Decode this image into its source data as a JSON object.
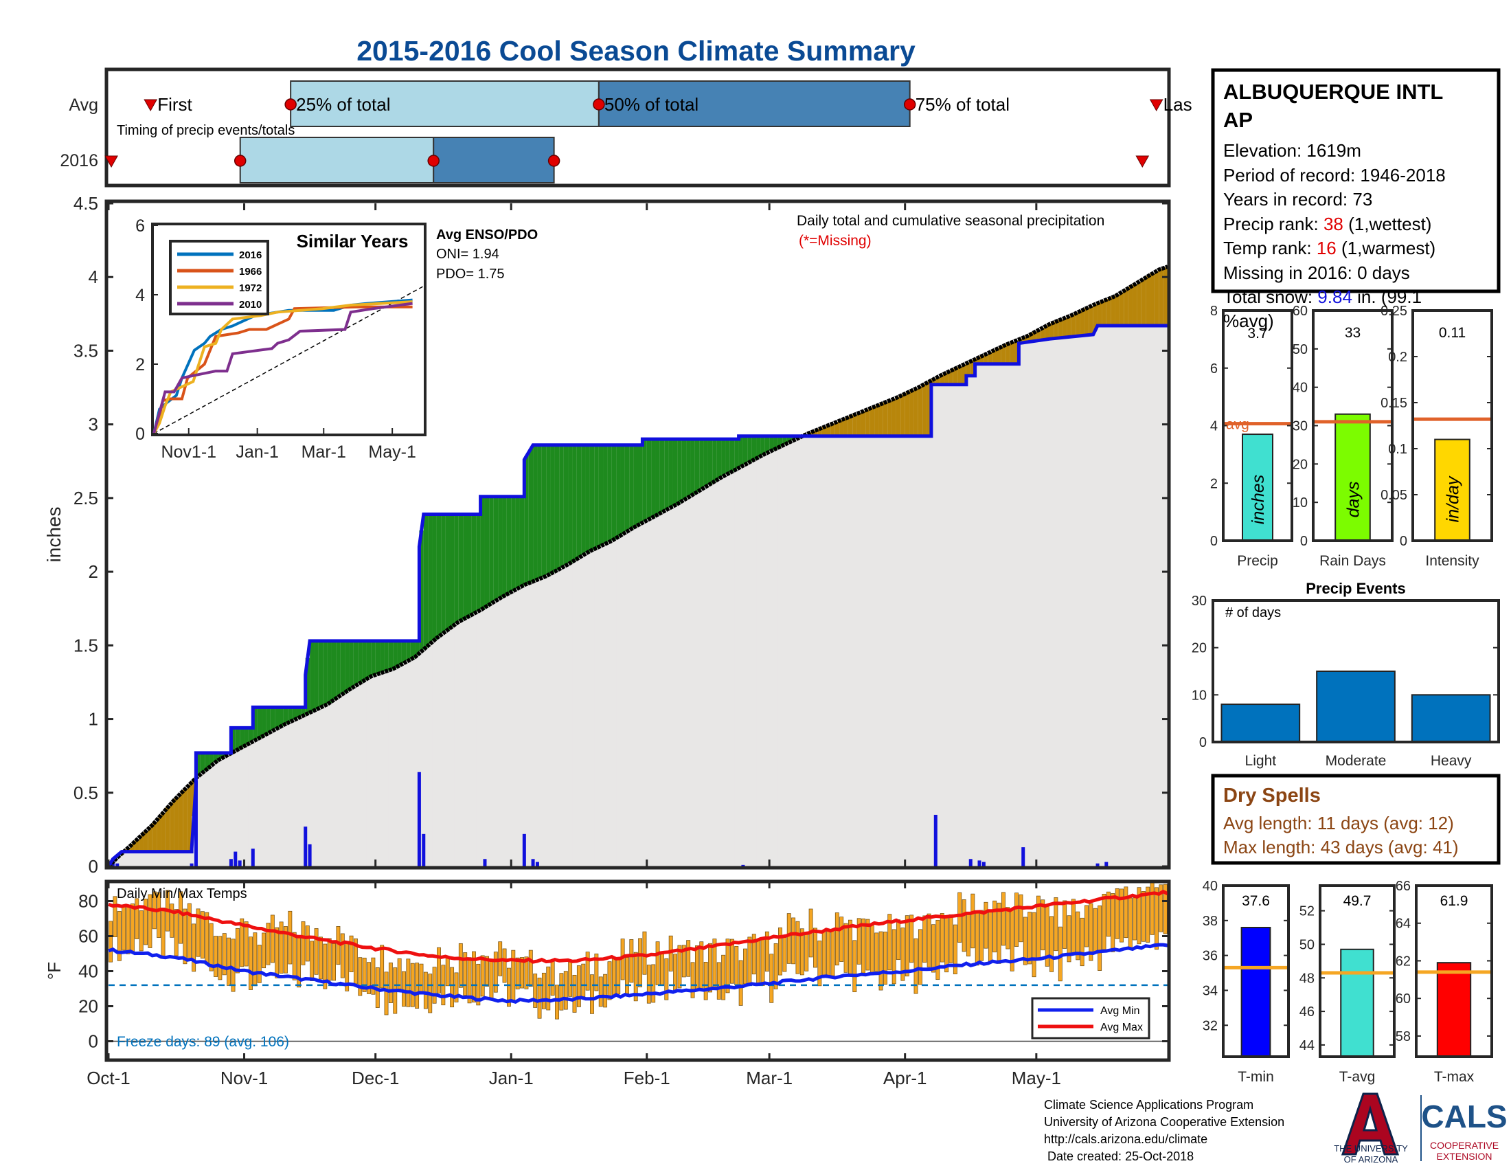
{
  "title": "2015-2016 Cool Season Climate Summary",
  "colors": {
    "title_blue": "#0a4a94",
    "pctl_light": "#add8e6",
    "pctl_dark": "#4682b4",
    "marker_red": "#e00000",
    "cum_blue": "#1010dd",
    "above_green": "#1e8a1e",
    "below_brown": "#b8860b",
    "area_gray": "#e8e7e6",
    "temp_bar": "#f5a623",
    "avg_min_blue": "#1020ee",
    "avg_max_red": "#ee1010",
    "freeze_blue": "#0072bd",
    "c2016": "#0072bd",
    "c1966": "#d95319",
    "c1972": "#edb120",
    "c2010": "#7e2f8e",
    "precip_bar": "#40e0d0",
    "raindays_bar": "#7cfc00",
    "intensity_bar": "#ffd700",
    "avg_line": "#e0622a",
    "events_bar": "#0072bd",
    "dry_brown": "#8b4513",
    "tmin_bar": "#0000ff",
    "tavg_bar": "#40e0d0",
    "tmax_bar": "#ff0000",
    "temp_avg_line": "#f5a623",
    "ua_red": "#ab0520",
    "ua_navy": "#0c234b",
    "cals_blue": "#1e5288"
  },
  "timing": {
    "row_labels": [
      "Avg",
      "2016"
    ],
    "avg_labels": {
      "first": "First",
      "p25": "25% of total",
      "p50": "50% of total",
      "p75": "75% of total",
      "last": "Las"
    },
    "subtitle": "Timing of precip events/totals",
    "avg_days": {
      "first": 15,
      "p25": 65,
      "p50": 175,
      "p75": 286,
      "last": 374
    },
    "y2016_days": {
      "first": 1,
      "p25": 47,
      "p50": 116,
      "p75": 159,
      "last": 369
    }
  },
  "station": {
    "name_line1": "ALBUQUERQUE INTL",
    "name_line2": "AP",
    "elevation": "Elevation: 1619m",
    "period": "Period of record: 1946-2018",
    "years": "Years in record: 73",
    "precip_rank_label": "Precip rank: ",
    "precip_rank_value": "38",
    "precip_rank_suffix": " (1,wettest)",
    "temp_rank_label": "Temp rank: ",
    "temp_rank_value": "16",
    "temp_rank_suffix": " (1,warmest)",
    "missing": "Missing in 2016: 0 days",
    "snow_label": "Total snow: ",
    "snow_value": "9.84",
    "snow_suffix": " in. (99.1",
    "snow_suffix2": "%avg)"
  },
  "main_chart": {
    "ylabel": "inches",
    "yticks": [
      "0",
      "0.5",
      "1",
      "1.5",
      "2",
      "2.5",
      "3",
      "3.5",
      "4",
      "4.5"
    ],
    "ylim": [
      0,
      4.5
    ],
    "xticks": [
      {
        "label": "Oct-1",
        "day": 0
      },
      {
        "label": "Nov-1",
        "day": 31
      },
      {
        "label": "Dec-1",
        "day": 61
      },
      {
        "label": "Jan-1",
        "day": 92
      },
      {
        "label": "Feb-1",
        "day": 123
      },
      {
        "label": "Mar-1",
        "day": 151
      },
      {
        "label": "Apr-1",
        "day": 182
      },
      {
        "label": "May-1",
        "day": 212
      }
    ],
    "xlim": [
      0,
      242
    ],
    "annotation_line1": "Daily total and cumulative seasonal precipitation",
    "annotation_line2": "(*=Missing)",
    "enso_title": "Avg ENSO/PDO",
    "oni": "ONI= 1.94",
    "pdo": "PDO= 1.75"
  },
  "chart_data": [
    {
      "type": "area",
      "name": "Daily total and cumulative seasonal precipitation",
      "units": "inches",
      "cumulative_avg": [
        [
          0,
          0
        ],
        [
          2,
          0.06
        ],
        [
          5,
          0.14
        ],
        [
          10,
          0.28
        ],
        [
          15,
          0.45
        ],
        [
          20,
          0.6
        ],
        [
          25,
          0.72
        ],
        [
          30,
          0.8
        ],
        [
          35,
          0.88
        ],
        [
          40,
          0.96
        ],
        [
          45,
          1.03
        ],
        [
          50,
          1.1
        ],
        [
          55,
          1.2
        ],
        [
          60,
          1.29
        ],
        [
          65,
          1.34
        ],
        [
          70,
          1.42
        ],
        [
          75,
          1.55
        ],
        [
          80,
          1.66
        ],
        [
          85,
          1.74
        ],
        [
          90,
          1.83
        ],
        [
          95,
          1.91
        ],
        [
          100,
          1.97
        ],
        [
          105,
          2.05
        ],
        [
          110,
          2.14
        ],
        [
          115,
          2.21
        ],
        [
          120,
          2.3
        ],
        [
          125,
          2.38
        ],
        [
          130,
          2.46
        ],
        [
          135,
          2.55
        ],
        [
          140,
          2.64
        ],
        [
          145,
          2.72
        ],
        [
          150,
          2.8
        ],
        [
          155,
          2.87
        ],
        [
          160,
          2.94
        ],
        [
          165,
          3.0
        ],
        [
          170,
          3.06
        ],
        [
          175,
          3.12
        ],
        [
          180,
          3.18
        ],
        [
          185,
          3.25
        ],
        [
          190,
          3.33
        ],
        [
          195,
          3.4
        ],
        [
          200,
          3.47
        ],
        [
          205,
          3.54
        ],
        [
          210,
          3.6
        ],
        [
          215,
          3.68
        ],
        [
          220,
          3.74
        ],
        [
          225,
          3.81
        ],
        [
          230,
          3.87
        ],
        [
          235,
          3.96
        ],
        [
          240,
          4.05
        ],
        [
          242,
          4.07
        ]
      ],
      "cumulative_2016": [
        [
          0,
          0
        ],
        [
          1,
          0.05
        ],
        [
          3,
          0.1
        ],
        [
          19,
          0.1
        ],
        [
          19,
          0.12
        ],
        [
          20,
          0.56
        ],
        [
          20,
          0.77
        ],
        [
          28,
          0.77
        ],
        [
          28,
          0.94
        ],
        [
          33,
          0.94
        ],
        [
          33,
          1.08
        ],
        [
          45,
          1.08
        ],
        [
          45,
          1.3
        ],
        [
          46,
          1.53
        ],
        [
          71,
          1.53
        ],
        [
          71,
          2.17
        ],
        [
          72,
          2.39
        ],
        [
          85,
          2.39
        ],
        [
          85,
          2.51
        ],
        [
          95,
          2.51
        ],
        [
          95,
          2.76
        ],
        [
          97,
          2.86
        ],
        [
          122,
          2.86
        ],
        [
          122,
          2.9
        ],
        [
          144,
          2.9
        ],
        [
          144,
          2.92
        ],
        [
          188,
          2.92
        ],
        [
          188,
          3.27
        ],
        [
          196,
          3.27
        ],
        [
          196,
          3.33
        ],
        [
          198,
          3.33
        ],
        [
          198,
          3.41
        ],
        [
          208,
          3.41
        ],
        [
          208,
          3.55
        ],
        [
          215,
          3.58
        ],
        [
          225,
          3.61
        ],
        [
          226,
          3.67
        ],
        [
          242,
          3.67
        ]
      ],
      "daily_2016": [
        [
          1,
          0.04
        ],
        [
          2,
          0.02
        ],
        [
          19,
          0.02
        ],
        [
          20,
          0.58
        ],
        [
          28,
          0.05
        ],
        [
          29,
          0.1
        ],
        [
          30,
          0.04
        ],
        [
          33,
          0.12
        ],
        [
          45,
          0.27
        ],
        [
          46,
          0.15
        ],
        [
          71,
          0.64
        ],
        [
          72,
          0.22
        ],
        [
          86,
          0.05
        ],
        [
          95,
          0.22
        ],
        [
          97,
          0.05
        ],
        [
          98,
          0.03
        ],
        [
          145,
          0.01
        ],
        [
          189,
          0.35
        ],
        [
          197,
          0.05
        ],
        [
          199,
          0.04
        ],
        [
          200,
          0.03
        ],
        [
          209,
          0.13
        ],
        [
          226,
          0.02
        ],
        [
          228,
          0.03
        ]
      ]
    },
    {
      "type": "line",
      "name": "Similar Years",
      "ylim": [
        0,
        6
      ],
      "xticks": [
        "Nov1-1",
        "Jan-1",
        "Mar-1",
        "May-1"
      ],
      "yticks": [
        "0",
        "2",
        "4",
        "6"
      ],
      "series": [
        {
          "name": "2016",
          "values": [
            [
              0,
              0
            ],
            [
              5,
              0.7
            ],
            [
              12,
              0.9
            ],
            [
              20,
              1.1
            ],
            [
              25,
              1.6
            ],
            [
              36,
              2.4
            ],
            [
              45,
              2.6
            ],
            [
              50,
              2.8
            ],
            [
              60,
              3.0
            ],
            [
              70,
              3.1
            ],
            [
              90,
              3.4
            ],
            [
              100,
              3.45
            ],
            [
              120,
              3.55
            ],
            [
              160,
              3.55
            ],
            [
              175,
              3.7
            ],
            [
              190,
              3.75
            ],
            [
              230,
              3.85
            ]
          ]
        },
        {
          "name": "1966",
          "values": [
            [
              0,
              0
            ],
            [
              5,
              0.5
            ],
            [
              8,
              0.95
            ],
            [
              15,
              1.0
            ],
            [
              25,
              1.0
            ],
            [
              30,
              1.6
            ],
            [
              45,
              2.0
            ],
            [
              55,
              2.8
            ],
            [
              75,
              2.9
            ],
            [
              85,
              3.0
            ],
            [
              100,
              3.0
            ],
            [
              120,
              3.3
            ],
            [
              125,
              3.6
            ],
            [
              180,
              3.65
            ],
            [
              230,
              3.65
            ]
          ]
        },
        {
          "name": "1972",
          "values": [
            [
              0,
              0
            ],
            [
              5,
              0.3
            ],
            [
              10,
              0.8
            ],
            [
              15,
              1.2
            ],
            [
              35,
              1.5
            ],
            [
              40,
              2.0
            ],
            [
              45,
              2.5
            ],
            [
              55,
              2.6
            ],
            [
              60,
              3.0
            ],
            [
              70,
              3.3
            ],
            [
              95,
              3.4
            ],
            [
              110,
              3.5
            ],
            [
              150,
              3.6
            ],
            [
              175,
              3.7
            ],
            [
              230,
              3.8
            ]
          ]
        },
        {
          "name": "2010",
          "values": [
            [
              0,
              0
            ],
            [
              5,
              0.6
            ],
            [
              10,
              1.2
            ],
            [
              18,
              1.2
            ],
            [
              25,
              1.6
            ],
            [
              40,
              1.7
            ],
            [
              55,
              1.8
            ],
            [
              65,
              1.8
            ],
            [
              70,
              2.3
            ],
            [
              105,
              2.45
            ],
            [
              110,
              2.6
            ],
            [
              120,
              2.7
            ],
            [
              130,
              2.95
            ],
            [
              170,
              3.0
            ],
            [
              175,
              3.5
            ],
            [
              195,
              3.6
            ],
            [
              230,
              3.75
            ]
          ]
        }
      ]
    },
    {
      "type": "bar",
      "name": "Daily Min/Max Temps",
      "units": "°F",
      "ylim": [
        -10,
        90
      ],
      "yticks": [
        "0",
        "20",
        "40",
        "60",
        "80"
      ],
      "freeze_line": 32,
      "avg_min": [
        [
          0,
          52
        ],
        [
          15,
          48
        ],
        [
          31,
          40
        ],
        [
          46,
          35
        ],
        [
          61,
          30
        ],
        [
          76,
          26
        ],
        [
          92,
          23
        ],
        [
          107,
          24
        ],
        [
          123,
          27
        ],
        [
          138,
          30
        ],
        [
          151,
          33
        ],
        [
          166,
          37
        ],
        [
          182,
          40
        ],
        [
          197,
          44
        ],
        [
          212,
          47
        ],
        [
          227,
          51
        ],
        [
          242,
          55
        ]
      ],
      "avg_max": [
        [
          0,
          78
        ],
        [
          15,
          74
        ],
        [
          31,
          66
        ],
        [
          46,
          59
        ],
        [
          61,
          53
        ],
        [
          76,
          48
        ],
        [
          92,
          46
        ],
        [
          107,
          46
        ],
        [
          123,
          49
        ],
        [
          138,
          54
        ],
        [
          151,
          59
        ],
        [
          166,
          64
        ],
        [
          182,
          69
        ],
        [
          197,
          73
        ],
        [
          212,
          77
        ],
        [
          227,
          81
        ],
        [
          242,
          85
        ]
      ],
      "legend": [
        "Avg Min",
        "Avg Max"
      ],
      "note": "Freeze days: 89 (avg. 106)"
    },
    {
      "type": "bar",
      "name": "Precip",
      "label": "inches",
      "value": 3.7,
      "value_label": "3.7",
      "avg": 4.07,
      "avg_label": "avg",
      "ylim": [
        0,
        8
      ],
      "yticks": [
        "0",
        "2",
        "4",
        "6",
        "8"
      ]
    },
    {
      "type": "bar",
      "name": "Rain Days",
      "label": "days",
      "value": 33,
      "value_label": "33",
      "avg": 31,
      "ylim": [
        0,
        60
      ],
      "yticks": [
        "0",
        "10",
        "20",
        "30",
        "40",
        "50",
        "60"
      ]
    },
    {
      "type": "bar",
      "name": "Intensity",
      "label": "in/day",
      "value": 0.11,
      "value_label": "0.11",
      "avg": 0.132,
      "ylim": [
        0,
        0.25
      ],
      "yticks": [
        "0",
        "0.05",
        "0.1",
        "0.15",
        "0.2",
        "0.25"
      ]
    },
    {
      "type": "bar",
      "name": "Precip Events",
      "ylabel": "# of days",
      "categories": [
        "Light",
        "Moderate",
        "Heavy"
      ],
      "values": [
        8,
        15,
        10
      ],
      "ylim": [
        0,
        30
      ],
      "yticks": [
        "0",
        "10",
        "20",
        "30"
      ]
    },
    {
      "type": "bar",
      "name": "T-min",
      "value": 37.6,
      "value_label": "37.6",
      "avg": 35.3,
      "ylim": [
        30.2,
        40
      ],
      "yticks": [
        "32",
        "34",
        "36",
        "38",
        "40"
      ]
    },
    {
      "type": "bar",
      "name": "T-avg",
      "value": 49.7,
      "value_label": "49.7",
      "avg": 48.3,
      "ylim": [
        43.3,
        53.5
      ],
      "yticks": [
        "44",
        "46",
        "48",
        "50",
        "52"
      ]
    },
    {
      "type": "bar",
      "name": "T-max",
      "value": 61.9,
      "value_label": "61.9",
      "avg": 61.4,
      "ylim": [
        56.9,
        66
      ],
      "yticks": [
        "58",
        "60",
        "62",
        "64",
        "66"
      ]
    }
  ],
  "dry_spells": {
    "title": "Dry Spells",
    "avg_length": "Avg length: 11 days (avg: 12)",
    "max_length": "Max length: 43 days (avg: 41)"
  },
  "footer": {
    "line1": "Climate Science Applications Program",
    "line2": "University of Arizona Cooperative Extension",
    "line3": "http://cals.arizona.edu/climate",
    "line4": " Date created: 25-Oct-2018",
    "ua_line1": "THE UNIVERSITY",
    "ua_line2": "OF ARIZONA",
    "cals": "CALS",
    "coop1": "COOPERATIVE",
    "coop2": "EXTENSION"
  }
}
